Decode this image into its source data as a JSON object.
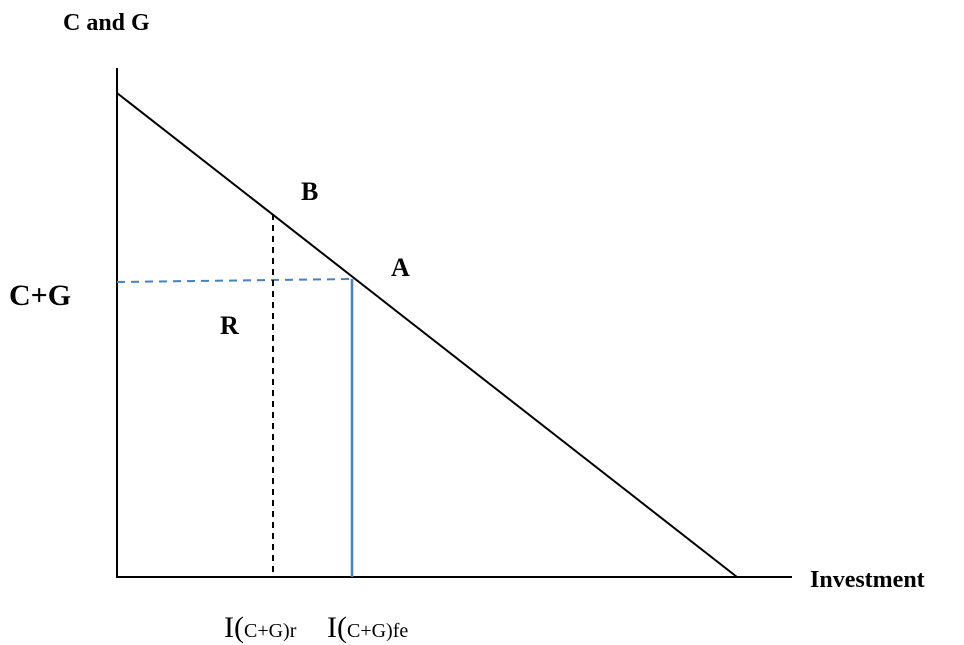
{
  "axes": {
    "y_label": "C and G",
    "x_label": "Investment"
  },
  "levels": {
    "y_tick": "C+G"
  },
  "points": {
    "A": "A",
    "B": "B",
    "R": "R"
  },
  "x_ticks": {
    "restricted": {
      "base": "I(",
      "sub": "C+G)r"
    },
    "full_employment": {
      "base": "I(",
      "sub": "C+G)fe"
    }
  },
  "colors": {
    "line": "#000000",
    "accent": "#4a7fc1"
  }
}
